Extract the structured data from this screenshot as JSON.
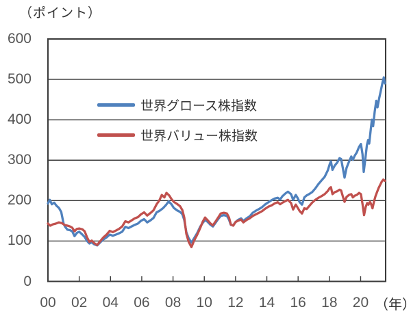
{
  "chart_data": {
    "type": "line",
    "title": "（ポイント）",
    "x_axis_unit": "（年）",
    "ylabel": "ポイント",
    "ylim": [
      0,
      600
    ],
    "y_ticks": [
      600,
      500,
      400,
      300,
      200,
      100,
      0
    ],
    "x_tick_labels": [
      "00",
      "02",
      "04",
      "06",
      "08",
      "10",
      "12",
      "14",
      "16",
      "18",
      "20"
    ],
    "x_tick_interval_years": 2,
    "x_range_years": [
      2000,
      2021.6
    ],
    "x_encoding": "years since 2000",
    "grid": "horizontal solid lines, plot framed by full border",
    "legend_position": "inside-top-left, no box",
    "axis_color": "#3a3a3a",
    "series": [
      {
        "name": "世界グロース株指数",
        "color": "#4F81BD",
        "points": [
          [
            0,
            193
          ],
          [
            0.12,
            202
          ],
          [
            0.25,
            191
          ],
          [
            0.4,
            195
          ],
          [
            0.55,
            187
          ],
          [
            0.7,
            182
          ],
          [
            0.85,
            172
          ],
          [
            1,
            143
          ],
          [
            1.1,
            135
          ],
          [
            1.25,
            128
          ],
          [
            1.4,
            127
          ],
          [
            1.55,
            124
          ],
          [
            1.7,
            112
          ],
          [
            1.85,
            120
          ],
          [
            2,
            123
          ],
          [
            2.2,
            116
          ],
          [
            2.35,
            110
          ],
          [
            2.5,
            100
          ],
          [
            2.65,
            94
          ],
          [
            2.8,
            97
          ],
          [
            2.95,
            92
          ],
          [
            3.15,
            89
          ],
          [
            3.35,
            97
          ],
          [
            3.55,
            104
          ],
          [
            3.75,
            109
          ],
          [
            3.95,
            116
          ],
          [
            4.15,
            113
          ],
          [
            4.35,
            116
          ],
          [
            4.55,
            119
          ],
          [
            4.75,
            123
          ],
          [
            4.95,
            135
          ],
          [
            5.15,
            132
          ],
          [
            5.35,
            136
          ],
          [
            5.55,
            140
          ],
          [
            5.75,
            143
          ],
          [
            5.95,
            150
          ],
          [
            6.15,
            154
          ],
          [
            6.35,
            146
          ],
          [
            6.55,
            151
          ],
          [
            6.75,
            157
          ],
          [
            6.95,
            171
          ],
          [
            7.15,
            175
          ],
          [
            7.35,
            181
          ],
          [
            7.55,
            189
          ],
          [
            7.72,
            198
          ],
          [
            7.9,
            191
          ],
          [
            8.05,
            182
          ],
          [
            8.25,
            176
          ],
          [
            8.45,
            172
          ],
          [
            8.6,
            166
          ],
          [
            8.72,
            152
          ],
          [
            8.85,
            122
          ],
          [
            9,
            107
          ],
          [
            9.18,
            96
          ],
          [
            9.35,
            107
          ],
          [
            9.55,
            120
          ],
          [
            9.75,
            136
          ],
          [
            9.9,
            145
          ],
          [
            10.05,
            152
          ],
          [
            10.2,
            148
          ],
          [
            10.4,
            140
          ],
          [
            10.55,
            136
          ],
          [
            10.7,
            144
          ],
          [
            10.9,
            155
          ],
          [
            11.05,
            162
          ],
          [
            11.25,
            164
          ],
          [
            11.45,
            162
          ],
          [
            11.58,
            153
          ],
          [
            11.7,
            140
          ],
          [
            11.85,
            139
          ],
          [
            12,
            147
          ],
          [
            12.15,
            152
          ],
          [
            12.35,
            156
          ],
          [
            12.5,
            150
          ],
          [
            12.7,
            156
          ],
          [
            12.9,
            161
          ],
          [
            13.1,
            170
          ],
          [
            13.3,
            175
          ],
          [
            13.5,
            179
          ],
          [
            13.7,
            184
          ],
          [
            13.9,
            191
          ],
          [
            14.1,
            196
          ],
          [
            14.3,
            201
          ],
          [
            14.5,
            205
          ],
          [
            14.7,
            207
          ],
          [
            14.85,
            203
          ],
          [
            15,
            211
          ],
          [
            15.2,
            218
          ],
          [
            15.35,
            222
          ],
          [
            15.55,
            216
          ],
          [
            15.68,
            202
          ],
          [
            15.85,
            214
          ],
          [
            15.95,
            208
          ],
          [
            16.1,
            196
          ],
          [
            16.25,
            190
          ],
          [
            16.4,
            208
          ],
          [
            16.55,
            213
          ],
          [
            16.7,
            216
          ],
          [
            16.9,
            221
          ],
          [
            17.1,
            230
          ],
          [
            17.3,
            241
          ],
          [
            17.5,
            250
          ],
          [
            17.7,
            259
          ],
          [
            17.9,
            275
          ],
          [
            18.02,
            290
          ],
          [
            18.1,
            297
          ],
          [
            18.2,
            276
          ],
          [
            18.35,
            287
          ],
          [
            18.5,
            294
          ],
          [
            18.65,
            305
          ],
          [
            18.75,
            303
          ],
          [
            18.85,
            283
          ],
          [
            18.97,
            257
          ],
          [
            19.1,
            281
          ],
          [
            19.25,
            296
          ],
          [
            19.4,
            309
          ],
          [
            19.5,
            301
          ],
          [
            19.62,
            311
          ],
          [
            19.75,
            319
          ],
          [
            19.9,
            333
          ],
          [
            20.02,
            340
          ],
          [
            20.12,
            315
          ],
          [
            20.2,
            271
          ],
          [
            20.3,
            303
          ],
          [
            20.4,
            337
          ],
          [
            20.48,
            350
          ],
          [
            20.55,
            341
          ],
          [
            20.65,
            377
          ],
          [
            20.72,
            400
          ],
          [
            20.8,
            384
          ],
          [
            20.9,
            420
          ],
          [
            21,
            447
          ],
          [
            21.08,
            431
          ],
          [
            21.18,
            452
          ],
          [
            21.28,
            470
          ],
          [
            21.4,
            492
          ],
          [
            21.48,
            505
          ],
          [
            21.55,
            490
          ]
        ]
      },
      {
        "name": "世界バリュー株指数",
        "color": "#C0504D",
        "points": [
          [
            0,
            143
          ],
          [
            0.15,
            138
          ],
          [
            0.3,
            141
          ],
          [
            0.5,
            143
          ],
          [
            0.7,
            146
          ],
          [
            0.9,
            144
          ],
          [
            1.05,
            140
          ],
          [
            1.25,
            138
          ],
          [
            1.4,
            136
          ],
          [
            1.55,
            133
          ],
          [
            1.7,
            124
          ],
          [
            1.85,
            130
          ],
          [
            2,
            131
          ],
          [
            2.2,
            129
          ],
          [
            2.35,
            124
          ],
          [
            2.5,
            109
          ],
          [
            2.65,
            98
          ],
          [
            2.8,
            101
          ],
          [
            2.95,
            95
          ],
          [
            3.15,
            90
          ],
          [
            3.35,
            100
          ],
          [
            3.55,
            109
          ],
          [
            3.75,
            116
          ],
          [
            3.95,
            125
          ],
          [
            4.15,
            122
          ],
          [
            4.35,
            126
          ],
          [
            4.55,
            130
          ],
          [
            4.75,
            136
          ],
          [
            4.95,
            149
          ],
          [
            5.15,
            146
          ],
          [
            5.35,
            151
          ],
          [
            5.55,
            156
          ],
          [
            5.75,
            159
          ],
          [
            5.95,
            166
          ],
          [
            6.15,
            171
          ],
          [
            6.35,
            163
          ],
          [
            6.55,
            169
          ],
          [
            6.75,
            176
          ],
          [
            6.95,
            191
          ],
          [
            7.12,
            200
          ],
          [
            7.28,
            214
          ],
          [
            7.45,
            208
          ],
          [
            7.58,
            219
          ],
          [
            7.75,
            213
          ],
          [
            7.9,
            204
          ],
          [
            8.05,
            197
          ],
          [
            8.25,
            192
          ],
          [
            8.45,
            186
          ],
          [
            8.6,
            176
          ],
          [
            8.72,
            158
          ],
          [
            8.85,
            118
          ],
          [
            9,
            98
          ],
          [
            9.18,
            85
          ],
          [
            9.35,
            101
          ],
          [
            9.55,
            116
          ],
          [
            9.75,
            133
          ],
          [
            9.9,
            148
          ],
          [
            10.05,
            158
          ],
          [
            10.2,
            152
          ],
          [
            10.4,
            143
          ],
          [
            10.55,
            139
          ],
          [
            10.7,
            147
          ],
          [
            10.9,
            159
          ],
          [
            11.05,
            168
          ],
          [
            11.25,
            170
          ],
          [
            11.45,
            168
          ],
          [
            11.58,
            158
          ],
          [
            11.7,
            141
          ],
          [
            11.85,
            138
          ],
          [
            12,
            147
          ],
          [
            12.15,
            150
          ],
          [
            12.35,
            153
          ],
          [
            12.5,
            146
          ],
          [
            12.7,
            152
          ],
          [
            12.9,
            156
          ],
          [
            13.1,
            162
          ],
          [
            13.3,
            166
          ],
          [
            13.5,
            170
          ],
          [
            13.7,
            174
          ],
          [
            13.9,
            180
          ],
          [
            14.1,
            185
          ],
          [
            14.3,
            188
          ],
          [
            14.5,
            193
          ],
          [
            14.7,
            196
          ],
          [
            14.85,
            191
          ],
          [
            15,
            195
          ],
          [
            15.2,
            199
          ],
          [
            15.35,
            202
          ],
          [
            15.55,
            194
          ],
          [
            15.68,
            178
          ],
          [
            15.85,
            190
          ],
          [
            15.95,
            184
          ],
          [
            16.1,
            174
          ],
          [
            16.25,
            168
          ],
          [
            16.4,
            181
          ],
          [
            16.55,
            179
          ],
          [
            16.7,
            186
          ],
          [
            16.9,
            195
          ],
          [
            17.1,
            202
          ],
          [
            17.3,
            207
          ],
          [
            17.5,
            211
          ],
          [
            17.7,
            216
          ],
          [
            17.9,
            224
          ],
          [
            18.02,
            231
          ],
          [
            18.1,
            233
          ],
          [
            18.2,
            216
          ],
          [
            18.35,
            221
          ],
          [
            18.5,
            223
          ],
          [
            18.65,
            227
          ],
          [
            18.75,
            225
          ],
          [
            18.85,
            212
          ],
          [
            18.97,
            197
          ],
          [
            19.1,
            209
          ],
          [
            19.25,
            214
          ],
          [
            19.4,
            216
          ],
          [
            19.5,
            208
          ],
          [
            19.62,
            212
          ],
          [
            19.75,
            214
          ],
          [
            19.9,
            219
          ],
          [
            20.02,
            216
          ],
          [
            20.12,
            192
          ],
          [
            20.22,
            164
          ],
          [
            20.32,
            184
          ],
          [
            20.42,
            194
          ],
          [
            20.5,
            190
          ],
          [
            20.6,
            197
          ],
          [
            20.68,
            190
          ],
          [
            20.76,
            181
          ],
          [
            20.85,
            197
          ],
          [
            20.95,
            211
          ],
          [
            21.05,
            221
          ],
          [
            21.15,
            231
          ],
          [
            21.25,
            239
          ],
          [
            21.35,
            247
          ],
          [
            21.45,
            252
          ],
          [
            21.55,
            249
          ]
        ]
      }
    ]
  }
}
